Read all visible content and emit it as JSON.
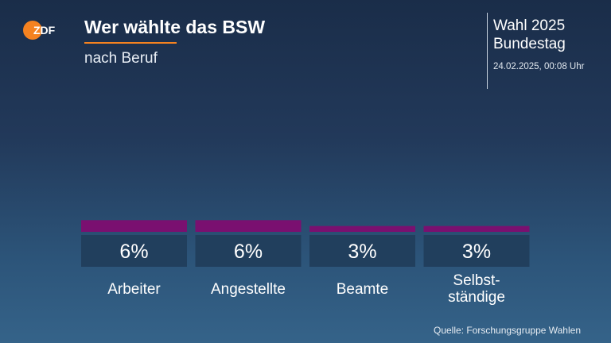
{
  "header": {
    "logo_text": "ZDF",
    "title": "Wer wählte das BSW",
    "subtitle": "nach Beruf",
    "election": "Wahl 2025",
    "chamber": "Bundestag",
    "timestamp": "24.02.2025, 00:08 Uhr"
  },
  "colors": {
    "bar": "#7a1070",
    "label_box": "#213f5d",
    "accent": "#f58220"
  },
  "chart_data": {
    "type": "bar",
    "title": "Wer wählte das BSW",
    "subtitle": "nach Beruf",
    "categories": [
      "Arbeiter",
      "Angestellte",
      "Beamte",
      "Selbst-\nständige"
    ],
    "values": [
      6,
      6,
      3,
      3
    ],
    "value_labels": [
      "6%",
      "6%",
      "3%",
      "3%"
    ],
    "unit": "%",
    "xlabel": "",
    "ylabel": "",
    "grid": false
  },
  "footer": {
    "source": "Quelle: Forschungsgruppe Wahlen"
  }
}
